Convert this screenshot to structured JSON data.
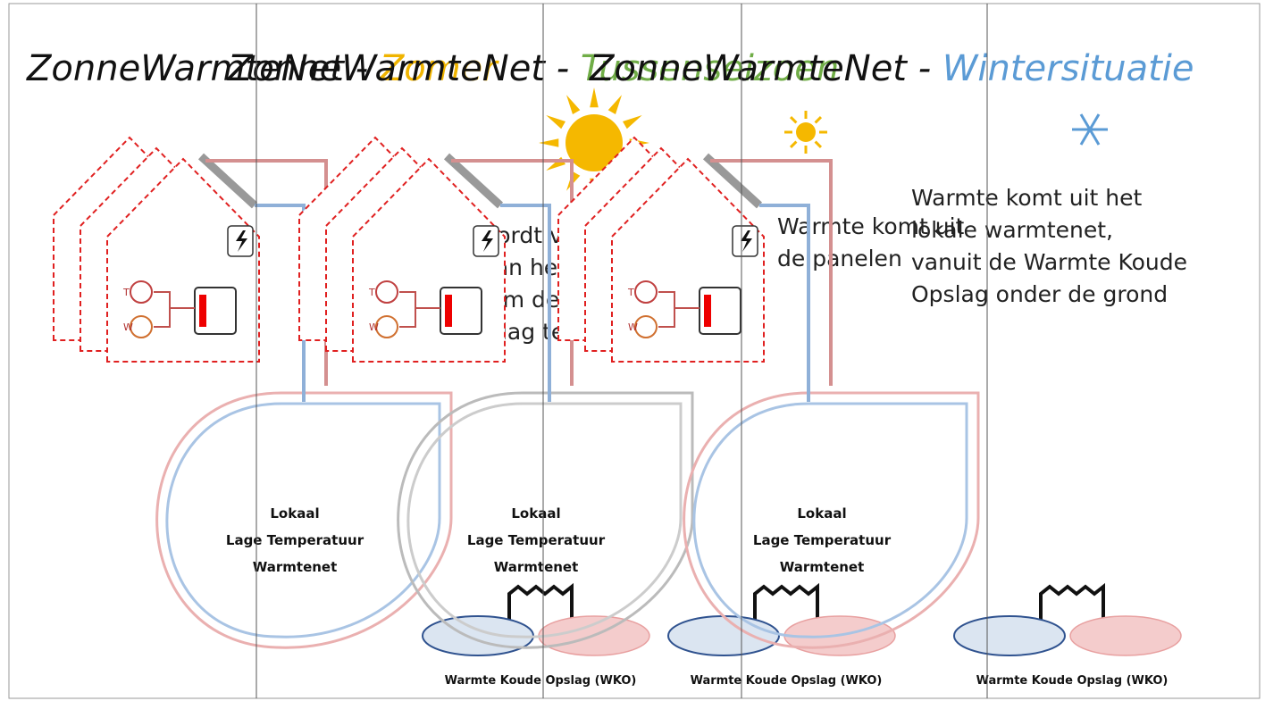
{
  "panels": [
    {
      "title_main": "ZonneWarmteNet - ",
      "title_season": "Zomer",
      "text_lines": [
        "Warmte wordt van",
        "panelen aan het net",
        "geleverd om de",
        "bodemopslag te vullen"
      ],
      "net_label": [
        "Lokaal",
        "Lage Temperatuur",
        "Warmtenet"
      ],
      "wko_label": "Warmte Koude Opslag (WKO)",
      "icon_labels": [
        "T",
        "W"
      ]
    },
    {
      "title_main": "ZonneWarmteNet - ",
      "title_season": "Tussenseizoen",
      "text_lines": [
        "Warmte komt uit",
        "de panelen"
      ],
      "net_label": [
        "Lokaal",
        "Lage Temperatuur",
        "Warmtenet"
      ],
      "wko_label": "Warmte Koude Opslag (WKO)",
      "icon_labels": [
        "T",
        "W"
      ]
    },
    {
      "title_main": "ZonneWarmteNet - ",
      "title_season": "Wintersituatie",
      "text_lines": [
        "Warmte komt uit het",
        "lokale warmtenet,",
        "vanuit de Warmte Koude",
        "Opslag onder de grond"
      ],
      "net_label": [
        "Lokaal",
        "Lage Temperatuur",
        "Warmtenet"
      ],
      "wko_label": "Warmte Koude Opslag (WKO)",
      "icon_labels": [
        "T",
        "W"
      ]
    }
  ]
}
